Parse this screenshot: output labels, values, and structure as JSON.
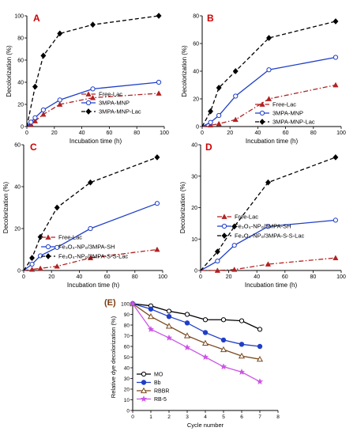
{
  "chart_data": [
    {
      "type": "line",
      "panel_label": "A",
      "xlabel": "Incubation time (h)",
      "ylabel": "Decolorization (%)",
      "xlim": [
        0,
        100
      ],
      "ylim": [
        0,
        100
      ],
      "xticks": [
        0,
        20,
        40,
        60,
        80,
        100
      ],
      "yticks": [
        0,
        20,
        40,
        60,
        80,
        100
      ],
      "legend_position": "bottom-right",
      "series": [
        {
          "name": "Free-Lac",
          "color": "#b22222",
          "dash": "dashdot",
          "marker": "triangle",
          "x": [
            0,
            3,
            6,
            12,
            24,
            48,
            96
          ],
          "y": [
            0,
            2,
            5,
            11,
            20,
            26,
            30
          ]
        },
        {
          "name": "3MPA-MNP",
          "color": "#1f3fc8",
          "dash": "solid",
          "marker": "circle-open",
          "x": [
            0,
            3,
            6,
            12,
            24,
            48,
            96
          ],
          "y": [
            0,
            4,
            8,
            15,
            24,
            34,
            40
          ]
        },
        {
          "name": "3MPA-MNP-Lac",
          "color": "#000000",
          "dash": "dash",
          "marker": "diamond",
          "x": [
            0,
            6,
            12,
            24,
            48,
            96
          ],
          "y": [
            0,
            36,
            64,
            84,
            92,
            100
          ]
        }
      ]
    },
    {
      "type": "line",
      "panel_label": "B",
      "xlabel": "Incubation time (h)",
      "ylabel": "Decolorization (%)",
      "xlim": [
        0,
        100
      ],
      "ylim": [
        0,
        80
      ],
      "xticks": [
        0,
        20,
        40,
        60,
        80,
        100
      ],
      "yticks": [
        0,
        20,
        40,
        60,
        80
      ],
      "legend_position": "bottom-right",
      "series": [
        {
          "name": "Free-Lac",
          "color": "#b22222",
          "dash": "dashdot",
          "marker": "triangle",
          "x": [
            0,
            6,
            12,
            24,
            48,
            96
          ],
          "y": [
            0,
            1,
            2,
            5,
            20,
            30
          ]
        },
        {
          "name": "3MPA-MNP",
          "color": "#1f3fc8",
          "dash": "solid",
          "marker": "circle-open",
          "x": [
            0,
            6,
            12,
            24,
            48,
            96
          ],
          "y": [
            0,
            3,
            8,
            22,
            41,
            50
          ]
        },
        {
          "name": "3MPA-MNP-Lac",
          "color": "#000000",
          "dash": "dash",
          "marker": "diamond",
          "x": [
            0,
            6,
            12,
            24,
            48,
            96
          ],
          "y": [
            0,
            11,
            28,
            40,
            64,
            76
          ]
        }
      ]
    },
    {
      "type": "line",
      "panel_label": "C",
      "xlabel": "Incubation time (h)",
      "ylabel": "Decolorization (%)",
      "xlim": [
        0,
        100
      ],
      "ylim": [
        0,
        60
      ],
      "xticks": [
        0,
        20,
        40,
        60,
        80,
        100
      ],
      "yticks": [
        0,
        20,
        40,
        60
      ],
      "legend_position": "bottom-center",
      "series": [
        {
          "name": "Free-Lac",
          "color": "#b22222",
          "dash": "dashdot",
          "marker": "triangle",
          "x": [
            0,
            6,
            12,
            24,
            48,
            96
          ],
          "y": [
            0,
            0.5,
            1,
            2,
            6,
            10
          ]
        },
        {
          "name": "Fe₃O₄-NP₀/3MPA-SH",
          "color": "#1f3fc8",
          "dash": "solid",
          "marker": "circle-open",
          "x": [
            0,
            6,
            12,
            24,
            48,
            96
          ],
          "y": [
            0,
            3,
            7,
            11,
            20,
            32
          ]
        },
        {
          "name": "Fe₃O₄-NP₀/3MPA-S-S-Lac",
          "color": "#000000",
          "dash": "dash",
          "marker": "diamond",
          "x": [
            0,
            6,
            12,
            24,
            48,
            96
          ],
          "y": [
            0,
            6,
            16,
            30,
            42,
            54
          ]
        }
      ]
    },
    {
      "type": "line",
      "panel_label": "D",
      "xlabel": "Incubation time (h)",
      "ylabel": "Decolorization (%)",
      "xlim": [
        0,
        100
      ],
      "ylim": [
        0,
        40
      ],
      "xticks": [
        0,
        20,
        40,
        60,
        80,
        100
      ],
      "yticks": [
        0,
        10,
        20,
        30,
        40
      ],
      "legend_position": "center-right",
      "series": [
        {
          "name": "Free-Lac",
          "color": "#b22222",
          "dash": "dashdot",
          "marker": "triangle",
          "x": [
            0,
            12,
            24,
            48,
            96
          ],
          "y": [
            0,
            0,
            0.3,
            2,
            4
          ]
        },
        {
          "name": "Fe₃O₄-NP₀/3MPA-SH",
          "color": "#1f3fc8",
          "dash": "solid",
          "marker": "circle-open",
          "x": [
            0,
            12,
            24,
            48,
            96
          ],
          "y": [
            0,
            3,
            8,
            14,
            16
          ]
        },
        {
          "name": "Fe₃O₄-NP₀/3MPA-S-S-Lac",
          "color": "#000000",
          "dash": "dash",
          "marker": "diamond",
          "x": [
            0,
            12,
            24,
            48,
            96
          ],
          "y": [
            0,
            6,
            14,
            28,
            36
          ]
        }
      ]
    },
    {
      "type": "line",
      "panel_label": "(E)",
      "xlabel": "Cycle number",
      "ylabel": "Relative dye decolorization (%)",
      "xlim": [
        0,
        8
      ],
      "ylim": [
        0,
        100
      ],
      "xticks": [
        0,
        1,
        2,
        3,
        4,
        5,
        6,
        7,
        8
      ],
      "yticks": [
        0,
        10,
        20,
        30,
        40,
        50,
        60,
        70,
        80,
        90,
        100
      ],
      "legend_position": "bottom-left",
      "series": [
        {
          "name": "MO",
          "color": "#000000",
          "dash": "solid",
          "marker": "circle-open",
          "x": [
            0,
            1,
            2,
            3,
            4,
            5,
            6,
            7
          ],
          "y": [
            100,
            98,
            93,
            90,
            85,
            85,
            84,
            76
          ]
        },
        {
          "name": "Bb",
          "color": "#1f3fc8",
          "dash": "solid",
          "marker": "circle-filled",
          "x": [
            0,
            1,
            2,
            3,
            4,
            5,
            6,
            7
          ],
          "y": [
            100,
            95,
            88,
            82,
            73,
            66,
            62,
            60
          ]
        },
        {
          "name": "RBBR",
          "color": "#7a4a1e",
          "dash": "solid",
          "marker": "triangle-open",
          "x": [
            0,
            1,
            2,
            3,
            4,
            5,
            6,
            7
          ],
          "y": [
            100,
            88,
            79,
            70,
            63,
            57,
            51,
            48
          ]
        },
        {
          "name": "RB-5",
          "color": "#cc55e6",
          "dash": "solid",
          "marker": "star",
          "x": [
            0,
            1,
            2,
            3,
            4,
            5,
            6,
            7
          ],
          "y": [
            100,
            76,
            68,
            59,
            50,
            41,
            36,
            27
          ]
        }
      ]
    }
  ]
}
